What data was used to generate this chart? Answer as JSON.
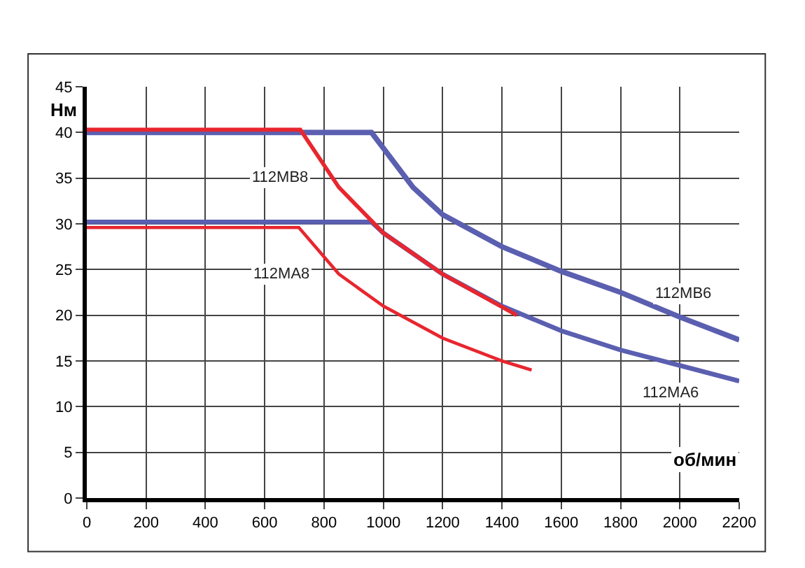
{
  "chart_data": {
    "type": "line",
    "xlabel": "об/мин",
    "ylabel": "Нм",
    "xlim": [
      0,
      2200
    ],
    "xticks": [
      0,
      200,
      400,
      600,
      800,
      1000,
      1200,
      1400,
      1600,
      1800,
      2000,
      2200
    ],
    "ylim": [
      0,
      45
    ],
    "yticks": [
      0,
      5,
      10,
      15,
      20,
      25,
      30,
      35,
      40,
      45
    ],
    "grid": true,
    "marker": "none",
    "line_style": "solid",
    "series": [
      {
        "color": "#5b5fb0",
        "x": [
          0,
          960,
          1100,
          1200,
          1400,
          1600,
          1800,
          2000,
          2200
        ],
        "values": [
          40,
          40,
          34,
          31,
          27.5,
          24.8,
          22.5,
          19.8,
          17.3
        ]
      },
      {
        "color": "#5b5fb0",
        "x": [
          0,
          960,
          1000,
          1200,
          1400,
          1600,
          1800,
          2000,
          2200
        ],
        "values": [
          30.2,
          30.2,
          29,
          24.5,
          21,
          18.3,
          16.2,
          14.5,
          12.8
        ]
      },
      {
        "color": "#e8262e",
        "x": [
          0,
          720,
          850,
          1000,
          1200,
          1450
        ],
        "values": [
          40.3,
          40.3,
          34,
          29,
          24.5,
          20
        ]
      },
      {
        "color": "#e8262e",
        "x": [
          0,
          715,
          850,
          1000,
          1200,
          1400,
          1500
        ],
        "values": [
          29.6,
          29.6,
          24.5,
          21,
          17.5,
          15,
          14
        ]
      }
    ],
    "annotations": [
      {
        "text": "112MB8",
        "x": 650,
        "y": 35
      },
      {
        "text": "112MA8",
        "x": 655,
        "y": 24.5
      },
      {
        "text": "112MB6",
        "x": 2010,
        "y": 22.3
      },
      {
        "text": "112MA6",
        "x": 1970,
        "y": 11.5
      }
    ]
  }
}
